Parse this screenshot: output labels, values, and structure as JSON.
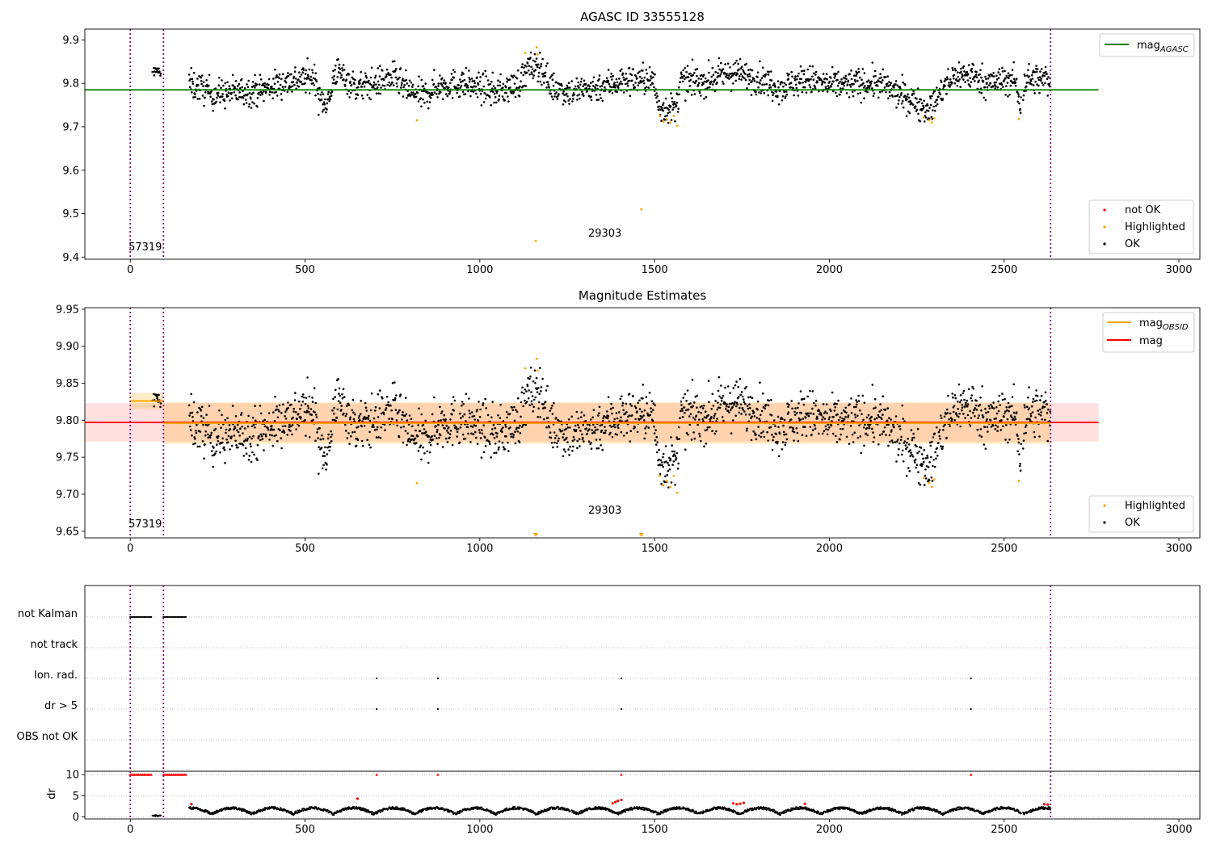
{
  "chart_data": [
    {
      "type": "scatter",
      "title": "AGASC ID 33555128",
      "xlim": [
        -130,
        3060
      ],
      "ylim": [
        9.395,
        9.925
      ],
      "x_ticks": [
        "0",
        "500",
        "1000",
        "1500",
        "2000",
        "2500",
        "3000"
      ],
      "x_tick_values": [
        0,
        500,
        1000,
        1500,
        2000,
        2500,
        3000
      ],
      "y_ticks": [
        "9.4",
        "9.5",
        "9.6",
        "9.7",
        "9.8",
        "9.9"
      ],
      "y_tick_values": [
        9.4,
        9.5,
        9.6,
        9.7,
        9.8,
        9.9
      ],
      "lines": [
        {
          "name": "mag",
          "subscript": "AGASC",
          "color": "#008000",
          "y": 9.785,
          "x": [
            -130,
            2770
          ]
        }
      ],
      "legend_top": {
        "placement": "top-right",
        "items": [
          {
            "label": "mag",
            "sub": "AGASC",
            "color": "#008000",
            "kind": "line"
          }
        ]
      },
      "legend_bottom": {
        "placement": "lower-right",
        "items": [
          {
            "label": "not OK",
            "color": "#ff0000",
            "kind": "dot"
          },
          {
            "label": "Highlighted",
            "color": "#ffa500",
            "kind": "dot"
          },
          {
            "label": "OK",
            "color": "#000000",
            "kind": "dot"
          }
        ]
      },
      "obsid_lines": [
        0,
        95,
        2633
      ],
      "annotations": [
        {
          "text": "57319",
          "x": -5,
          "y": 9.415
        },
        {
          "text": "29303",
          "x": 1310,
          "y": 9.447
        }
      ],
      "highlighted_points": [
        [
          1130,
          9.87
        ],
        [
          1163,
          9.883
        ],
        [
          1165,
          9.867
        ],
        [
          1160,
          9.437
        ],
        [
          1462,
          9.51
        ],
        [
          820,
          9.715
        ],
        [
          1515,
          9.725
        ],
        [
          1525,
          9.712
        ],
        [
          1535,
          9.718
        ],
        [
          1545,
          9.71
        ],
        [
          1555,
          9.725
        ],
        [
          1565,
          9.702
        ],
        [
          2270,
          9.722
        ],
        [
          2285,
          9.715
        ],
        [
          2293,
          9.71
        ],
        [
          2300,
          9.72
        ],
        [
          2542,
          9.718
        ]
      ]
    },
    {
      "type": "scatter",
      "title": "Magnitude Estimates",
      "xlim": [
        -130,
        3060
      ],
      "ylim": [
        9.641,
        9.952
      ],
      "x_ticks": [
        "0",
        "500",
        "1000",
        "1500",
        "2000",
        "2500",
        "3000"
      ],
      "x_tick_values": [
        0,
        500,
        1000,
        1500,
        2000,
        2500,
        3000
      ],
      "y_ticks": [
        "9.65",
        "9.70",
        "9.75",
        "9.80",
        "9.85",
        "9.90",
        "9.95"
      ],
      "y_tick_values": [
        9.65,
        9.7,
        9.75,
        9.8,
        9.85,
        9.9,
        9.95
      ],
      "mag": {
        "value": 9.797,
        "band": [
          9.771,
          9.823
        ],
        "x": [
          -130,
          2770
        ],
        "color": "#ff0000"
      },
      "mag_obsid": [
        {
          "x": [
            0,
            95
          ],
          "value": 9.826,
          "band": [
            9.815,
            9.837
          ]
        },
        {
          "x": [
            95,
            2633
          ],
          "value": 9.796,
          "band": [
            9.768,
            9.824
          ]
        }
      ],
      "legend_top": {
        "placement": "top-right",
        "items": [
          {
            "label": "mag",
            "sub": "OBSID",
            "color": "#ffa500",
            "kind": "line"
          },
          {
            "label": "mag",
            "sub": "",
            "color": "#ff0000",
            "kind": "line"
          }
        ]
      },
      "legend_bottom": {
        "placement": "lower-right",
        "items": [
          {
            "label": "Highlighted",
            "color": "#ffa500",
            "kind": "dot"
          },
          {
            "label": "OK",
            "color": "#000000",
            "kind": "dot"
          }
        ]
      },
      "obsid_lines": [
        0,
        95,
        2633
      ],
      "annotations": [
        {
          "text": "57319",
          "x": -5,
          "y": 9.655
        },
        {
          "text": "29303",
          "x": 1310,
          "y": 9.674
        }
      ],
      "off_scale_markers": [
        1160,
        1462
      ]
    },
    {
      "type": "scatter",
      "title": "",
      "xlim": [
        -130,
        3060
      ],
      "x_ticks": [
        "0",
        "500",
        "1000",
        "1500",
        "2000",
        "2500",
        "3000"
      ],
      "x_tick_values": [
        0,
        500,
        1000,
        1500,
        2000,
        2500,
        3000
      ],
      "flag_rows": [
        "not Kalman",
        "not track",
        "Ion. rad.",
        "dr > 5",
        "OBS not OK"
      ],
      "not_kalman_ranges": [
        [
          0,
          60
        ],
        [
          95,
          160
        ]
      ],
      "ion_rad_points": [
        705,
        880,
        1405,
        2405
      ],
      "dr_gt5_points": [
        705,
        880,
        1405,
        2405
      ],
      "dr_ylim": [
        -0.5,
        10.8
      ],
      "dr_ticks": [
        "0",
        "5",
        "10"
      ],
      "dr_tick_values": [
        0,
        5,
        10
      ],
      "ylabel": "dr",
      "red_capped": [
        [
          0,
          60
        ],
        [
          95,
          160
        ],
        [
          705,
          705
        ],
        [
          880,
          880
        ],
        [
          1405,
          1405
        ],
        [
          2405,
          2405
        ]
      ],
      "red_dr": [
        [
          175,
          3
        ],
        [
          650,
          4.3
        ],
        [
          1380,
          3.2
        ],
        [
          1388,
          3.5
        ],
        [
          1395,
          3.8
        ],
        [
          1405,
          4
        ],
        [
          1725,
          3.2
        ],
        [
          1735,
          3
        ],
        [
          1745,
          3.1
        ],
        [
          1755,
          3.3
        ],
        [
          1930,
          3.1
        ],
        [
          2615,
          3
        ],
        [
          2625,
          2.9
        ]
      ],
      "obsid_lines": [
        0,
        95,
        2633
      ]
    }
  ]
}
